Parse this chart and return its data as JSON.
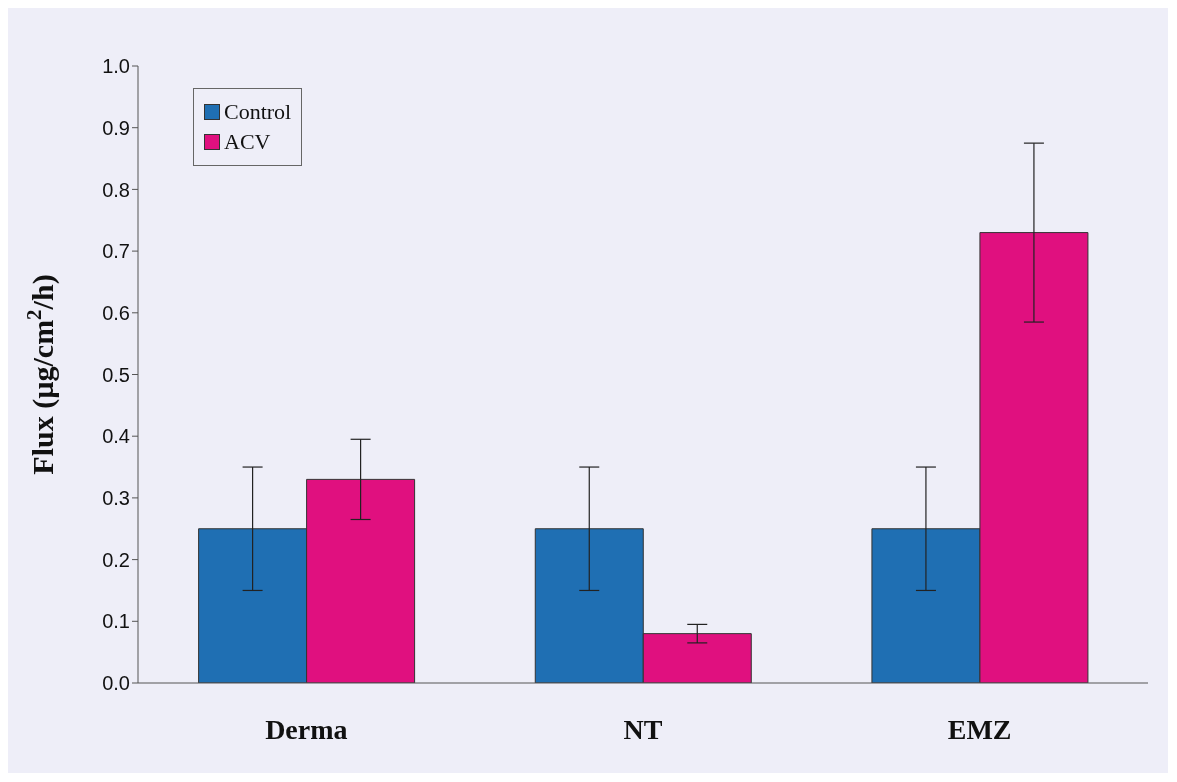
{
  "chart_data": {
    "type": "bar",
    "ylabel": "Flux (µg/cm$^{2}$/h)",
    "categories": [
      "Derma",
      "NT",
      "EMZ"
    ],
    "series": [
      {
        "name": "Control",
        "color": "#1f6fb3",
        "values": [
          0.25,
          0.25,
          0.25
        ],
        "errors": [
          0.1,
          0.1,
          0.1
        ]
      },
      {
        "name": "ACV",
        "color": "#e0107f",
        "values": [
          0.33,
          0.08,
          0.73
        ],
        "errors": [
          0.065,
          0.015,
          0.145
        ]
      }
    ],
    "ylim": [
      0,
      1
    ],
    "yticks": [
      {
        "value": 0,
        "label": "0.0"
      },
      {
        "value": 0.1,
        "label": "0.1"
      },
      {
        "value": 0.2,
        "label": "0.2"
      },
      {
        "value": 0.3,
        "label": "0.3"
      },
      {
        "value": 0.4,
        "label": "0.4"
      },
      {
        "value": 0.5,
        "label": "0.5"
      },
      {
        "value": 0.6,
        "label": "0.6"
      },
      {
        "value": 0.7,
        "label": "0.7"
      },
      {
        "value": 0.8,
        "label": "0.8"
      },
      {
        "value": 0.9,
        "label": "0.9"
      },
      {
        "value": 1,
        "label": "1.0"
      }
    ],
    "grid": false,
    "legend": "top left"
  }
}
